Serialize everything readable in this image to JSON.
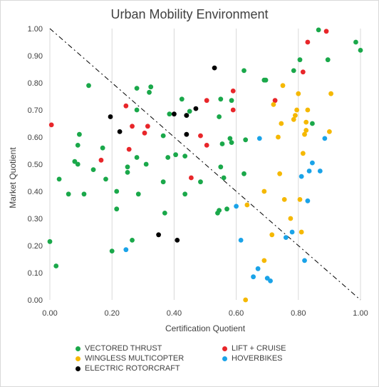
{
  "chart_data": {
    "type": "scatter",
    "title": "Urban Mobility Environment",
    "xlabel": "Certification Quotient",
    "ylabel": "Market Quotient",
    "xlim": [
      0,
      1
    ],
    "ylim": [
      0,
      1
    ],
    "x_ticks": [
      "0.00",
      "0.20",
      "0.40",
      "0.60",
      "0.80",
      "1.00"
    ],
    "y_ticks": [
      "0.00",
      "0.10",
      "0.20",
      "0.30",
      "0.40",
      "0.50",
      "0.60",
      "0.70",
      "0.80",
      "0.90",
      "1.00"
    ],
    "grid": "vertical",
    "reference_line": {
      "style": "dashed",
      "from": [
        0,
        1
      ],
      "to": [
        1,
        0
      ]
    },
    "legend_position": "bottom",
    "series": [
      {
        "name": "VECTORED THRUST",
        "color": "#1aa84a",
        "points": [
          [
            0.0,
            0.215
          ],
          [
            0.02,
            0.125
          ],
          [
            0.03,
            0.445
          ],
          [
            0.06,
            0.39
          ],
          [
            0.08,
            0.51
          ],
          [
            0.09,
            0.5
          ],
          [
            0.09,
            0.57
          ],
          [
            0.095,
            0.61
          ],
          [
            0.11,
            0.39
          ],
          [
            0.125,
            0.79
          ],
          [
            0.14,
            0.48
          ],
          [
            0.17,
            0.56
          ],
          [
            0.18,
            0.445
          ],
          [
            0.2,
            0.18
          ],
          [
            0.215,
            0.4
          ],
          [
            0.215,
            0.335
          ],
          [
            0.25,
            0.49
          ],
          [
            0.25,
            0.47
          ],
          [
            0.265,
            0.22
          ],
          [
            0.28,
            0.78
          ],
          [
            0.28,
            0.7
          ],
          [
            0.28,
            0.525
          ],
          [
            0.285,
            0.39
          ],
          [
            0.31,
            0.5
          ],
          [
            0.32,
            0.765
          ],
          [
            0.325,
            0.785
          ],
          [
            0.365,
            0.605
          ],
          [
            0.365,
            0.435
          ],
          [
            0.37,
            0.32
          ],
          [
            0.38,
            0.525
          ],
          [
            0.385,
            0.685
          ],
          [
            0.405,
            0.535
          ],
          [
            0.425,
            0.74
          ],
          [
            0.435,
            0.39
          ],
          [
            0.435,
            0.53
          ],
          [
            0.44,
            0.68
          ],
          [
            0.45,
            0.695
          ],
          [
            0.485,
            0.435
          ],
          [
            0.54,
            0.32
          ],
          [
            0.545,
            0.33
          ],
          [
            0.545,
            0.675
          ],
          [
            0.55,
            0.49
          ],
          [
            0.55,
            0.74
          ],
          [
            0.555,
            0.575
          ],
          [
            0.56,
            0.45
          ],
          [
            0.57,
            0.335
          ],
          [
            0.58,
            0.595
          ],
          [
            0.585,
            0.58
          ],
          [
            0.585,
            0.735
          ],
          [
            0.625,
            0.845
          ],
          [
            0.625,
            0.465
          ],
          [
            0.63,
            0.59
          ],
          [
            0.69,
            0.81
          ],
          [
            0.695,
            0.81
          ],
          [
            0.785,
            0.845
          ],
          [
            0.805,
            0.885
          ],
          [
            0.845,
            0.65
          ],
          [
            0.865,
            0.995
          ],
          [
            0.895,
            0.885
          ],
          [
            0.985,
            0.95
          ],
          [
            1.0,
            0.92
          ]
        ]
      },
      {
        "name": "LIFT + CRUISE",
        "color": "#e8262a",
        "points": [
          [
            0.005,
            0.645
          ],
          [
            0.165,
            0.515
          ],
          [
            0.245,
            0.715
          ],
          [
            0.255,
            0.555
          ],
          [
            0.265,
            0.64
          ],
          [
            0.305,
            0.615
          ],
          [
            0.315,
            0.64
          ],
          [
            0.455,
            0.45
          ],
          [
            0.485,
            0.605
          ],
          [
            0.505,
            0.735
          ],
          [
            0.505,
            0.57
          ],
          [
            0.59,
            0.77
          ],
          [
            0.59,
            0.7
          ],
          [
            0.725,
            0.735
          ],
          [
            0.815,
            0.84
          ],
          [
            0.83,
            0.95
          ],
          [
            0.89,
            0.99
          ]
        ]
      },
      {
        "name": "WINGLESS MULTICOPTER",
        "color": "#f5b800",
        "points": [
          [
            0.63,
            0.0
          ],
          [
            0.635,
            0.35
          ],
          [
            0.69,
            0.145
          ],
          [
            0.69,
            0.4
          ],
          [
            0.715,
            0.24
          ],
          [
            0.72,
            0.72
          ],
          [
            0.735,
            0.6
          ],
          [
            0.74,
            0.465
          ],
          [
            0.745,
            0.65
          ],
          [
            0.75,
            0.79
          ],
          [
            0.755,
            0.37
          ],
          [
            0.775,
            0.3
          ],
          [
            0.785,
            0.665
          ],
          [
            0.79,
            0.68
          ],
          [
            0.795,
            0.7
          ],
          [
            0.8,
            0.76
          ],
          [
            0.805,
            0.37
          ],
          [
            0.81,
            0.25
          ],
          [
            0.815,
            0.54
          ],
          [
            0.82,
            0.61
          ],
          [
            0.825,
            0.625
          ],
          [
            0.825,
            0.655
          ],
          [
            0.83,
            0.7
          ],
          [
            0.9,
            0.62
          ],
          [
            0.905,
            0.76
          ]
        ]
      },
      {
        "name": "HOVERBIKES",
        "color": "#1aa3e8",
        "points": [
          [
            0.245,
            0.185
          ],
          [
            0.6,
            0.345
          ],
          [
            0.615,
            0.22
          ],
          [
            0.655,
            0.085
          ],
          [
            0.67,
            0.115
          ],
          [
            0.675,
            0.595
          ],
          [
            0.7,
            0.08
          ],
          [
            0.71,
            0.07
          ],
          [
            0.76,
            0.23
          ],
          [
            0.78,
            0.25
          ],
          [
            0.81,
            0.455
          ],
          [
            0.82,
            0.145
          ],
          [
            0.83,
            0.365
          ],
          [
            0.835,
            0.475
          ],
          [
            0.845,
            0.505
          ],
          [
            0.87,
            0.475
          ],
          [
            0.885,
            0.595
          ]
        ]
      },
      {
        "name": "ELECTRIC ROTORCRAFT",
        "color": "#000000",
        "points": [
          [
            0.195,
            0.675
          ],
          [
            0.225,
            0.62
          ],
          [
            0.35,
            0.24
          ],
          [
            0.4,
            0.685
          ],
          [
            0.41,
            0.22
          ],
          [
            0.44,
            0.61
          ],
          [
            0.44,
            0.68
          ],
          [
            0.47,
            0.705
          ],
          [
            0.53,
            0.855
          ]
        ]
      }
    ]
  }
}
